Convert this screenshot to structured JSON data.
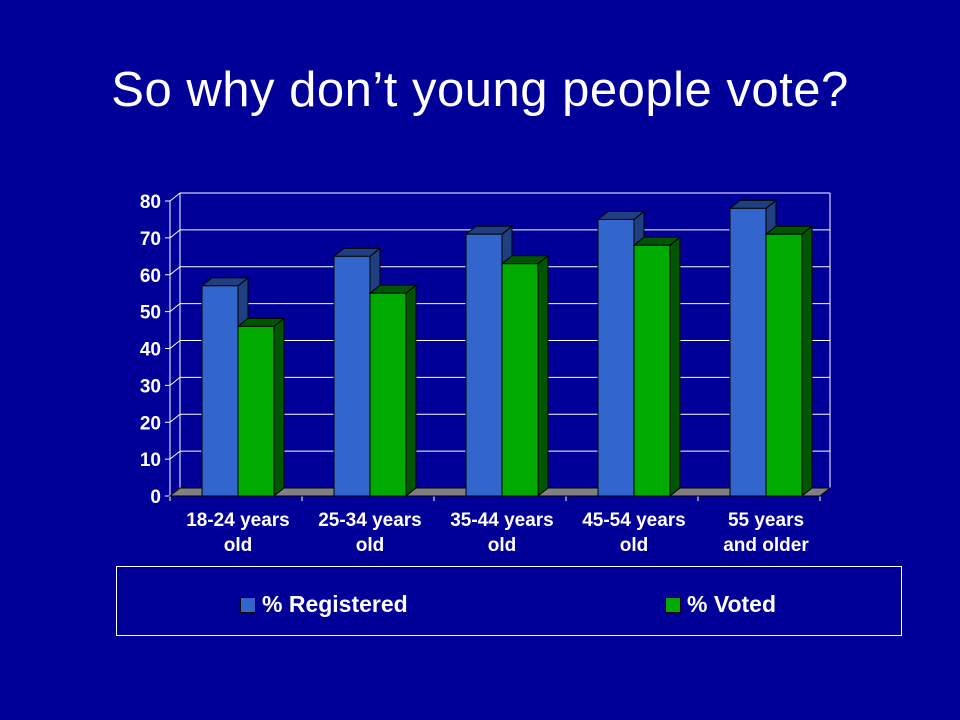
{
  "slide": {
    "title": "So why don’t young people vote?"
  },
  "colors": {
    "background": "#000099",
    "registered_front": "#3366cc",
    "registered_side": "#1f3f80",
    "voted_front": "#00aa00",
    "voted_side": "#005500",
    "floor": "#808080",
    "gridline": "#ffffff"
  },
  "legend": {
    "registered_label": "% Registered",
    "voted_label": "% Voted"
  },
  "chart_data": {
    "type": "bar",
    "title": "",
    "xlabel": "",
    "ylabel": "",
    "ylim": [
      0,
      80
    ],
    "yticks": [
      0,
      10,
      20,
      30,
      40,
      50,
      60,
      70,
      80
    ],
    "grid": true,
    "legend_position": "bottom",
    "categories": [
      [
        "18-24 years",
        "old"
      ],
      [
        "25-34 years",
        "old"
      ],
      [
        "35-44 years",
        "old"
      ],
      [
        "45-54 years",
        "old"
      ],
      [
        "55 years",
        "and older"
      ]
    ],
    "series": [
      {
        "name": "% Registered",
        "values": [
          57,
          65,
          71,
          75,
          78
        ]
      },
      {
        "name": "% Voted",
        "values": [
          46,
          55,
          63,
          68,
          71
        ]
      }
    ]
  }
}
